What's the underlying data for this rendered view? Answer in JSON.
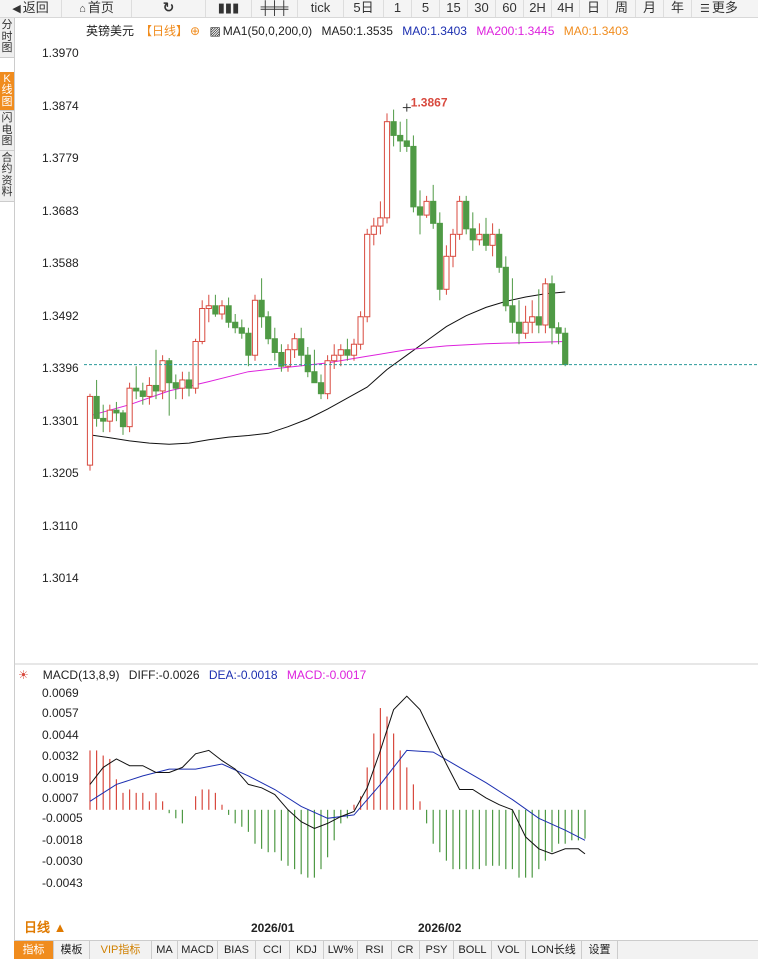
{
  "toolbar": {
    "back": "返回",
    "home": "首页",
    "tick": "tick",
    "p5d": "5日",
    "m1": "1",
    "m5": "5",
    "m15": "15",
    "m30": "30",
    "m60": "60",
    "h2": "2H",
    "h4": "4H",
    "day": "日",
    "week": "周",
    "month": "月",
    "year": "年",
    "more": "更多"
  },
  "side_tabs": [
    "分时图",
    "K线图",
    "闪电图",
    "合约资料"
  ],
  "main_legend": {
    "symbol": "英镑美元",
    "period_tag": "【日线】",
    "ma_title": "MA1(50,0,200,0)",
    "ma50": "MA50:1.3535",
    "ma0a": "MA0:1.3403",
    "ma200": "MA200:1.3445",
    "ma0b": "MA0:1.3403"
  },
  "macd_legend": {
    "title": "MACD(13,8,9)",
    "diff": "DIFF:-0.0026",
    "dea": "DEA:-0.0018",
    "macd": "MACD:-0.0017"
  },
  "bottom_tabs": [
    "指标",
    "模板",
    "VIP指标",
    "MA",
    "MACD",
    "BIAS",
    "CCI",
    "KDJ",
    "LW%",
    "RSI",
    "CR",
    "PSY",
    "BOLL",
    "VOL",
    "LON长线",
    "设置"
  ],
  "period_label": "日线 ▲",
  "colors": {
    "up": "#d84a3f",
    "down": "#4f9a45",
    "ma50": "#111111",
    "ma200": "#dd22dd",
    "diff": "#111111",
    "dea": "#1c2fb0",
    "ref": "#2a9a9a",
    "accent": "#f08c1e"
  },
  "chart_data": [
    {
      "type": "candlestick",
      "ylim": [
        1.296,
        1.399
      ],
      "yticks": [
        1.397,
        1.3874,
        1.3779,
        1.3683,
        1.3588,
        1.3492,
        1.3396,
        1.3301,
        1.3205,
        1.311,
        1.3014
      ],
      "xticks": [
        {
          "label": "2026/01",
          "index": 33
        },
        {
          "label": "2026/02",
          "index": 58
        }
      ],
      "max_label": "1.3867",
      "max_index": 48,
      "last_price_line": 1.3403,
      "ohlc": [
        [
          1.322,
          1.335,
          1.321,
          1.3345
        ],
        [
          1.3345,
          1.3375,
          1.329,
          1.3305
        ],
        [
          1.3305,
          1.333,
          1.328,
          1.33
        ],
        [
          1.33,
          1.333,
          1.328,
          1.332
        ],
        [
          1.332,
          1.3335,
          1.33,
          1.3315
        ],
        [
          1.3315,
          1.332,
          1.3275,
          1.329
        ],
        [
          1.329,
          1.337,
          1.328,
          1.336
        ],
        [
          1.336,
          1.34,
          1.334,
          1.3355
        ],
        [
          1.3355,
          1.337,
          1.333,
          1.3345
        ],
        [
          1.3345,
          1.338,
          1.333,
          1.3365
        ],
        [
          1.3365,
          1.343,
          1.334,
          1.3355
        ],
        [
          1.3355,
          1.342,
          1.334,
          1.341
        ],
        [
          1.341,
          1.3415,
          1.331,
          1.337
        ],
        [
          1.337,
          1.3385,
          1.334,
          1.336
        ],
        [
          1.336,
          1.339,
          1.334,
          1.3375
        ],
        [
          1.3375,
          1.339,
          1.3345,
          1.336
        ],
        [
          1.336,
          1.345,
          1.335,
          1.3445
        ],
        [
          1.3445,
          1.352,
          1.344,
          1.3505
        ],
        [
          1.3505,
          1.353,
          1.348,
          1.351
        ],
        [
          1.351,
          1.353,
          1.349,
          1.3495
        ],
        [
          1.3495,
          1.352,
          1.3485,
          1.351
        ],
        [
          1.351,
          1.3525,
          1.347,
          1.348
        ],
        [
          1.348,
          1.3495,
          1.346,
          1.347
        ],
        [
          1.347,
          1.3485,
          1.345,
          1.346
        ],
        [
          1.346,
          1.347,
          1.34,
          1.342
        ],
        [
          1.342,
          1.353,
          1.341,
          1.352
        ],
        [
          1.352,
          1.356,
          1.347,
          1.349
        ],
        [
          1.349,
          1.35,
          1.344,
          1.345
        ],
        [
          1.345,
          1.347,
          1.341,
          1.3425
        ],
        [
          1.3425,
          1.344,
          1.339,
          1.34
        ],
        [
          1.34,
          1.344,
          1.339,
          1.343
        ],
        [
          1.343,
          1.346,
          1.3415,
          1.345
        ],
        [
          1.345,
          1.347,
          1.34,
          1.342
        ],
        [
          1.342,
          1.3435,
          1.338,
          1.339
        ],
        [
          1.339,
          1.343,
          1.337,
          1.337
        ],
        [
          1.337,
          1.3385,
          1.334,
          1.335
        ],
        [
          1.335,
          1.342,
          1.334,
          1.341
        ],
        [
          1.341,
          1.344,
          1.3395,
          1.342
        ],
        [
          1.342,
          1.344,
          1.34,
          1.343
        ],
        [
          1.343,
          1.345,
          1.341,
          1.342
        ],
        [
          1.342,
          1.345,
          1.341,
          1.344
        ],
        [
          1.344,
          1.35,
          1.343,
          1.349
        ],
        [
          1.349,
          1.365,
          1.348,
          1.364
        ],
        [
          1.364,
          1.367,
          1.362,
          1.3655
        ],
        [
          1.3655,
          1.37,
          1.364,
          1.367
        ],
        [
          1.367,
          1.386,
          1.366,
          1.3845
        ],
        [
          1.3845,
          1.3867,
          1.38,
          1.382
        ],
        [
          1.382,
          1.3845,
          1.379,
          1.381
        ],
        [
          1.381,
          1.385,
          1.379,
          1.38
        ],
        [
          1.38,
          1.382,
          1.368,
          1.369
        ],
        [
          1.369,
          1.372,
          1.364,
          1.3675
        ],
        [
          1.3675,
          1.371,
          1.367,
          1.37
        ],
        [
          1.37,
          1.373,
          1.365,
          1.366
        ],
        [
          1.366,
          1.368,
          1.352,
          1.354
        ],
        [
          1.354,
          1.362,
          1.353,
          1.36
        ],
        [
          1.36,
          1.365,
          1.358,
          1.364
        ],
        [
          1.364,
          1.371,
          1.363,
          1.37
        ],
        [
          1.37,
          1.371,
          1.364,
          1.365
        ],
        [
          1.365,
          1.368,
          1.361,
          1.363
        ],
        [
          1.363,
          1.366,
          1.362,
          1.364
        ],
        [
          1.364,
          1.367,
          1.361,
          1.362
        ],
        [
          1.362,
          1.366,
          1.36,
          1.364
        ],
        [
          1.364,
          1.365,
          1.357,
          1.358
        ],
        [
          1.358,
          1.36,
          1.35,
          1.351
        ],
        [
          1.351,
          1.356,
          1.346,
          1.348
        ],
        [
          1.348,
          1.352,
          1.344,
          1.346
        ],
        [
          1.346,
          1.351,
          1.345,
          1.348
        ],
        [
          1.348,
          1.352,
          1.346,
          1.349
        ],
        [
          1.349,
          1.354,
          1.346,
          1.3475
        ],
        [
          1.3475,
          1.356,
          1.346,
          1.355
        ],
        [
          1.355,
          1.3565,
          1.344,
          1.347
        ],
        [
          1.347,
          1.348,
          1.344,
          1.346
        ],
        [
          1.346,
          1.347,
          1.34,
          1.3403
        ]
      ],
      "ma50": [
        [
          0,
          1.3275
        ],
        [
          3,
          1.327
        ],
        [
          6,
          1.3264
        ],
        [
          9,
          1.326
        ],
        [
          12,
          1.3258
        ],
        [
          15,
          1.326
        ],
        [
          18,
          1.3266
        ],
        [
          21,
          1.3271
        ],
        [
          24,
          1.3274
        ],
        [
          27,
          1.3278
        ],
        [
          30,
          1.329
        ],
        [
          33,
          1.3304
        ],
        [
          36,
          1.3322
        ],
        [
          39,
          1.3342
        ],
        [
          42,
          1.3362
        ],
        [
          45,
          1.3394
        ],
        [
          48,
          1.342
        ],
        [
          51,
          1.3446
        ],
        [
          54,
          1.3472
        ],
        [
          57,
          1.3492
        ],
        [
          60,
          1.3507
        ],
        [
          63,
          1.3518
        ],
        [
          66,
          1.3526
        ],
        [
          69,
          1.3532
        ],
        [
          72,
          1.3535
        ]
      ],
      "ma200": [
        [
          0,
          1.331
        ],
        [
          6,
          1.333
        ],
        [
          12,
          1.3355
        ],
        [
          18,
          1.3372
        ],
        [
          24,
          1.339
        ],
        [
          30,
          1.3398
        ],
        [
          36,
          1.3406
        ],
        [
          42,
          1.3418
        ],
        [
          48,
          1.343
        ],
        [
          54,
          1.3437
        ],
        [
          60,
          1.3441
        ],
        [
          66,
          1.3443
        ],
        [
          72,
          1.3445
        ]
      ]
    },
    {
      "type": "macd",
      "ylim": [
        -0.0052,
        0.0073
      ],
      "yticks": [
        0.0069,
        0.0057,
        0.0044,
        0.0032,
        0.0019,
        0.0007,
        -0.0005,
        -0.0018,
        -0.003,
        -0.0043
      ],
      "diff": [
        [
          0,
          0.0015
        ],
        [
          2,
          0.0025
        ],
        [
          4,
          0.003
        ],
        [
          6,
          0.0026
        ],
        [
          8,
          0.0026
        ],
        [
          10,
          0.0022
        ],
        [
          12,
          0.0022
        ],
        [
          14,
          0.0025
        ],
        [
          16,
          0.0033
        ],
        [
          18,
          0.0035
        ],
        [
          20,
          0.0029
        ],
        [
          22,
          0.0024
        ],
        [
          24,
          0.0015
        ],
        [
          26,
          0.0013
        ],
        [
          28,
          0.0009
        ],
        [
          30,
          0.0
        ],
        [
          32,
          -0.0007
        ],
        [
          34,
          -0.0011
        ],
        [
          36,
          -0.0008
        ],
        [
          38,
          -0.0004
        ],
        [
          40,
          -0.0001
        ],
        [
          42,
          0.0013
        ],
        [
          44,
          0.0035
        ],
        [
          46,
          0.0059
        ],
        [
          48,
          0.0067
        ],
        [
          50,
          0.0059
        ],
        [
          52,
          0.0043
        ],
        [
          54,
          0.0027
        ],
        [
          56,
          0.0012
        ],
        [
          58,
          0.0012
        ],
        [
          60,
          0.0007
        ],
        [
          62,
          0.0003
        ],
        [
          64,
          0.0
        ],
        [
          66,
          -0.0016
        ],
        [
          68,
          -0.0023
        ],
        [
          70,
          -0.0026
        ],
        [
          72,
          -0.0023
        ],
        [
          74,
          -0.0023
        ],
        [
          75,
          -0.0026
        ]
      ],
      "dea": [
        [
          0,
          0.0005
        ],
        [
          4,
          0.0015
        ],
        [
          8,
          0.002
        ],
        [
          12,
          0.0024
        ],
        [
          16,
          0.0024
        ],
        [
          20,
          0.0027
        ],
        [
          24,
          0.002
        ],
        [
          28,
          0.0012
        ],
        [
          32,
          0.0002
        ],
        [
          36,
          -0.0005
        ],
        [
          40,
          -0.0003
        ],
        [
          44,
          0.0015
        ],
        [
          48,
          0.0035
        ],
        [
          52,
          0.0034
        ],
        [
          56,
          0.0025
        ],
        [
          60,
          0.0016
        ],
        [
          64,
          0.0006
        ],
        [
          68,
          -0.0005
        ],
        [
          72,
          -0.0012
        ],
        [
          75,
          -0.0018
        ]
      ],
      "hist": [
        0.0035,
        0.0035,
        0.0032,
        0.003,
        0.0018,
        0.001,
        0.0012,
        0.001,
        0.001,
        0.0005,
        0.001,
        0.0005,
        -0.0002,
        -0.0005,
        -0.0008,
        0.0,
        0.0008,
        0.0012,
        0.0012,
        0.001,
        0.0003,
        -0.0003,
        -0.0008,
        -0.001,
        -0.0013,
        -0.002,
        -0.0023,
        -0.0025,
        -0.0025,
        -0.003,
        -0.0033,
        -0.0035,
        -0.0038,
        -0.004,
        -0.004,
        -0.0035,
        -0.0028,
        -0.0018,
        -0.0008,
        -0.0005,
        0.0003,
        0.0008,
        0.0025,
        0.0045,
        0.006,
        0.0055,
        0.0045,
        0.0035,
        0.0025,
        0.0015,
        0.0005,
        -0.0008,
        -0.002,
        -0.0025,
        -0.003,
        -0.0035,
        -0.0035,
        -0.0035,
        -0.0035,
        -0.0035,
        -0.0033,
        -0.0033,
        -0.0033,
        -0.0035,
        -0.0035,
        -0.004,
        -0.004,
        -0.004,
        -0.0035,
        -0.003,
        -0.0025,
        -0.002,
        -0.002,
        -0.0018,
        -0.0018,
        -0.0017
      ]
    }
  ]
}
